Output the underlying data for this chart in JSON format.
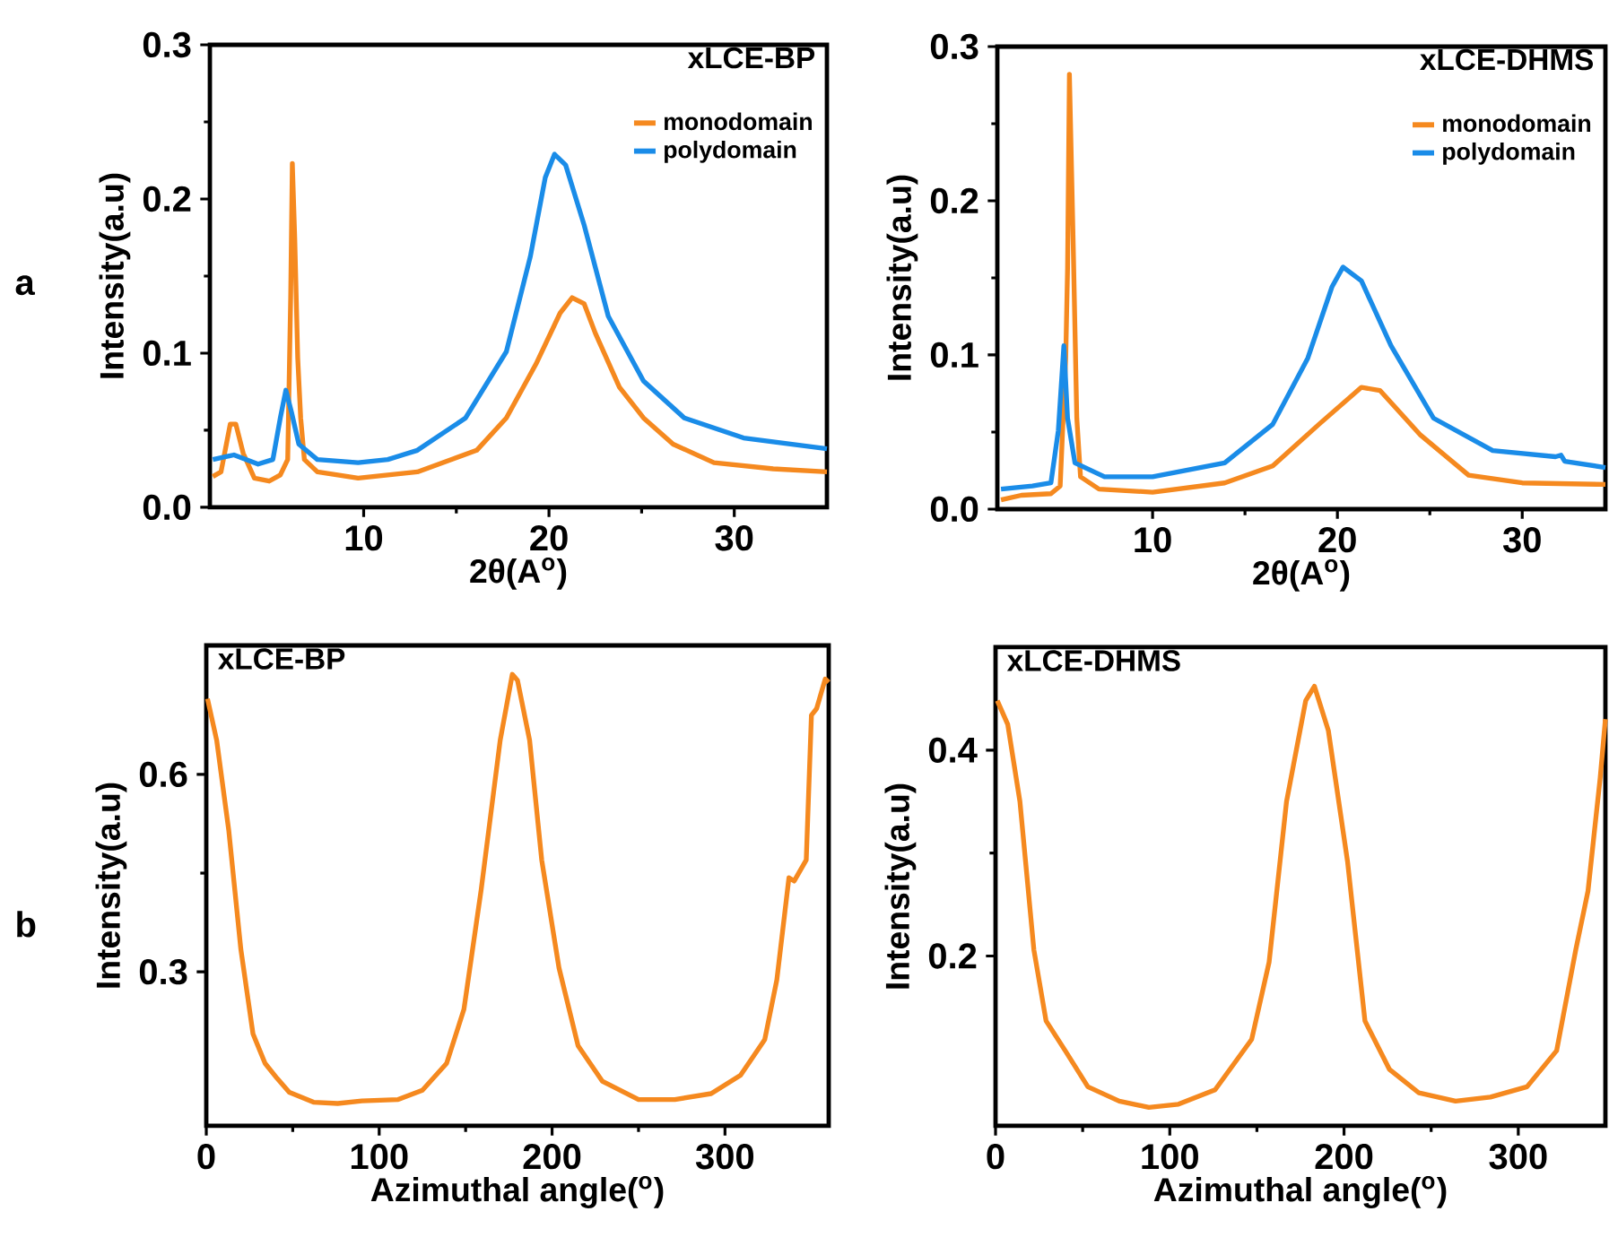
{
  "chart_data": [
    {
      "type": "line",
      "title": "xLCE-BP",
      "xlabel": "2θ(A$^{o}$)",
      "ylabel": "Intensity(a.u)",
      "annotations": [
        "a"
      ],
      "legend": "top right",
      "xlim": [
        1.7,
        35
      ],
      "xticks": [
        10,
        20,
        30
      ],
      "ylim": [
        0,
        0.3
      ],
      "yticks": [
        {
          "value": 0,
          "label": "0.0"
        },
        0.1,
        0.2,
        0.3
      ],
      "series": [
        {
          "name": "monodomain",
          "color": "#f5891f",
          "x": [
            1.86,
            2.3,
            2.8,
            3.1,
            3.5,
            4.1,
            4.9,
            5.5,
            5.9,
            6.06,
            6.15,
            6.28,
            6.44,
            6.6,
            6.8,
            7.5,
            9.7,
            12.9,
            16.1,
            17.7,
            19.3,
            20.6,
            21.25,
            21.9,
            22.5,
            23.8,
            25.1,
            26.7,
            28.9,
            32.1,
            35
          ],
          "values": [
            0.02,
            0.023,
            0.054,
            0.054,
            0.035,
            0.019,
            0.017,
            0.021,
            0.031,
            0.136,
            0.223,
            0.175,
            0.097,
            0.058,
            0.031,
            0.023,
            0.019,
            0.023,
            0.037,
            0.058,
            0.093,
            0.126,
            0.136,
            0.132,
            0.113,
            0.078,
            0.058,
            0.041,
            0.029,
            0.025,
            0.023
          ]
        },
        {
          "name": "polydomain",
          "color": "#1a8ce8",
          "x": [
            1.86,
            3.0,
            4.3,
            5.1,
            5.5,
            5.8,
            6.1,
            6.5,
            7.5,
            9.7,
            11.3,
            12.9,
            15.5,
            17.7,
            19.0,
            19.8,
            20.3,
            20.9,
            21.9,
            23.2,
            25.1,
            27.3,
            30.5,
            35
          ],
          "values": [
            0.031,
            0.034,
            0.028,
            0.031,
            0.058,
            0.076,
            0.062,
            0.041,
            0.031,
            0.029,
            0.031,
            0.037,
            0.058,
            0.101,
            0.163,
            0.214,
            0.229,
            0.222,
            0.183,
            0.124,
            0.082,
            0.058,
            0.045,
            0.038
          ]
        }
      ]
    },
    {
      "type": "line",
      "title": "xLCE-DHMS",
      "xlabel": "2θ(A$^{o}$)",
      "ylabel": "Intensity(a.u)",
      "legend": "top right",
      "xlim": [
        1.6,
        34.5
      ],
      "xticks": [
        10,
        20,
        30
      ],
      "ylim": [
        0,
        0.3
      ],
      "yticks": [
        {
          "value": 0,
          "label": "0.0"
        },
        0.1,
        0.2,
        0.3
      ],
      "series": [
        {
          "name": "monodomain",
          "color": "#f5891f",
          "x": [
            1.8,
            2.9,
            4.5,
            5.0,
            5.3,
            5.4,
            5.5,
            5.7,
            5.9,
            6.1,
            7.1,
            10,
            13.9,
            16.5,
            19.0,
            21.3,
            22.3,
            24.5,
            27.1,
            30,
            34.5
          ],
          "values": [
            0.006,
            0.009,
            0.01,
            0.015,
            0.098,
            0.156,
            0.282,
            0.175,
            0.059,
            0.021,
            0.013,
            0.011,
            0.017,
            0.028,
            0.055,
            0.079,
            0.077,
            0.048,
            0.022,
            0.017,
            0.016
          ]
        },
        {
          "name": "polydomain",
          "color": "#1a8ce8",
          "x": [
            1.8,
            3.5,
            4.5,
            4.9,
            5.2,
            5.4,
            5.8,
            7.4,
            10,
            13.9,
            16.5,
            18.4,
            19.7,
            20.3,
            21.3,
            22.9,
            25.2,
            28.4,
            31.8,
            32.1,
            32.3,
            34.5
          ],
          "values": [
            0.013,
            0.015,
            0.017,
            0.051,
            0.106,
            0.059,
            0.03,
            0.021,
            0.021,
            0.03,
            0.055,
            0.098,
            0.144,
            0.157,
            0.148,
            0.106,
            0.059,
            0.038,
            0.034,
            0.035,
            0.031,
            0.027
          ]
        }
      ]
    },
    {
      "type": "line",
      "title": "xLCE-BP",
      "xlabel": "Azimuthal angle($^{o}$)",
      "ylabel": "Intensity(a.u)",
      "annotations": [
        "b"
      ],
      "xlim": [
        0,
        360
      ],
      "xticks": [
        0,
        100,
        200,
        300
      ],
      "ylim": [
        0.066,
        0.796
      ],
      "yticks": [
        0.3,
        0.6
      ],
      "series": [
        {
          "color": "#f5891f",
          "x": [
            0.7,
            6,
            13,
            20,
            27,
            34,
            41,
            48,
            62,
            76,
            90,
            111,
            125,
            139,
            149,
            159,
            170,
            177,
            180,
            187,
            194,
            204,
            215,
            229,
            250,
            271,
            292,
            309,
            323,
            330,
            337,
            340,
            347,
            350,
            353,
            358,
            360
          ],
          "values": [
            0.715,
            0.652,
            0.515,
            0.334,
            0.206,
            0.161,
            0.138,
            0.117,
            0.102,
            0.1,
            0.104,
            0.106,
            0.12,
            0.161,
            0.243,
            0.425,
            0.652,
            0.752,
            0.743,
            0.652,
            0.47,
            0.306,
            0.188,
            0.134,
            0.106,
            0.106,
            0.115,
            0.143,
            0.197,
            0.288,
            0.443,
            0.438,
            0.47,
            0.69,
            0.7,
            0.745,
            0.74
          ]
        }
      ]
    },
    {
      "type": "line",
      "title": "xLCE-DHMS",
      "xlabel": "Azimuthal angle($^{o}$)",
      "ylabel": "Intensity(a.u)",
      "xlim": [
        0,
        350
      ],
      "xticks": [
        0,
        100,
        200,
        300
      ],
      "ylim": [
        0.035,
        0.5
      ],
      "yticks": [
        0.2,
        0.4
      ],
      "series": [
        {
          "color": "#f5891f",
          "x": [
            1,
            7,
            14,
            22,
            29,
            40,
            53,
            71,
            88,
            105,
            126,
            147,
            157,
            167,
            178,
            183,
            191,
            202,
            212,
            226,
            243,
            264,
            284,
            305,
            322,
            333,
            340,
            347,
            350
          ],
          "values": [
            0.448,
            0.425,
            0.35,
            0.206,
            0.137,
            0.108,
            0.073,
            0.059,
            0.053,
            0.056,
            0.07,
            0.119,
            0.194,
            0.35,
            0.448,
            0.462,
            0.419,
            0.292,
            0.137,
            0.09,
            0.067,
            0.059,
            0.063,
            0.073,
            0.108,
            0.206,
            0.263,
            0.373,
            0.43
          ]
        }
      ]
    }
  ]
}
